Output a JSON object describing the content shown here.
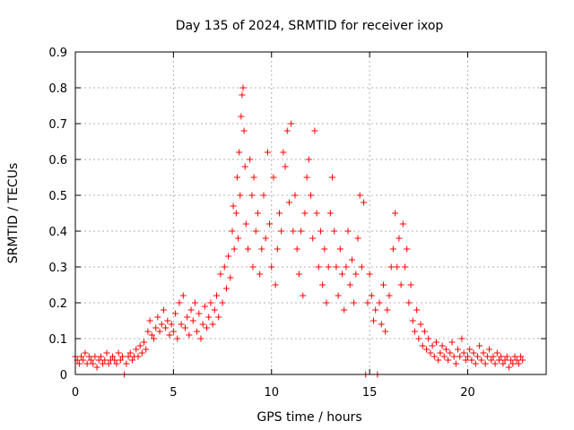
{
  "chart_data": {
    "type": "scatter",
    "title": "Day 135 of 2024, SRMTID for receiver ixop",
    "xlabel": "GPS time / hours",
    "ylabel": "SRMTID / TECUs",
    "xlim": [
      0,
      24
    ],
    "ylim": [
      0,
      0.9
    ],
    "grid": true,
    "marker": "+",
    "x_ticks": [
      {
        "value": 0,
        "label": "0"
      },
      {
        "value": 5,
        "label": "5"
      },
      {
        "value": 10,
        "label": "10"
      },
      {
        "value": 15,
        "label": "15"
      },
      {
        "value": 20,
        "label": "20"
      }
    ],
    "y_ticks": [
      {
        "value": 0,
        "label": "0"
      },
      {
        "value": 0.1,
        "label": "0.1"
      },
      {
        "value": 0.2,
        "label": "0.2"
      },
      {
        "value": 0.3,
        "label": "0.3"
      },
      {
        "value": 0.4,
        "label": "0.4"
      },
      {
        "value": 0.5,
        "label": "0.5"
      },
      {
        "value": 0.6,
        "label": "0.6"
      },
      {
        "value": 0.7,
        "label": "0.7"
      },
      {
        "value": 0.8,
        "label": "0.8"
      },
      {
        "value": 0.9,
        "label": "0.9"
      }
    ],
    "series": [
      {
        "name": "SRMTID",
        "color": "#ff0000",
        "points": [
          [
            0.0,
            0.05
          ],
          [
            0.1,
            0.04
          ],
          [
            0.2,
            0.03
          ],
          [
            0.3,
            0.05
          ],
          [
            0.4,
            0.04
          ],
          [
            0.5,
            0.06
          ],
          [
            0.6,
            0.03
          ],
          [
            0.7,
            0.05
          ],
          [
            0.8,
            0.04
          ],
          [
            0.9,
            0.03
          ],
          [
            1.0,
            0.05
          ],
          [
            1.1,
            0.02
          ],
          [
            1.2,
            0.04
          ],
          [
            1.3,
            0.05
          ],
          [
            1.4,
            0.03
          ],
          [
            1.5,
            0.04
          ],
          [
            1.6,
            0.06
          ],
          [
            1.7,
            0.03
          ],
          [
            1.8,
            0.04
          ],
          [
            1.9,
            0.05
          ],
          [
            2.0,
            0.04
          ],
          [
            2.1,
            0.03
          ],
          [
            2.2,
            0.06
          ],
          [
            2.3,
            0.04
          ],
          [
            2.4,
            0.05
          ],
          [
            2.5,
            0.0
          ],
          [
            2.6,
            0.03
          ],
          [
            2.7,
            0.05
          ],
          [
            2.8,
            0.06
          ],
          [
            2.9,
            0.04
          ],
          [
            3.0,
            0.05
          ],
          [
            3.1,
            0.07
          ],
          [
            3.2,
            0.05
          ],
          [
            3.3,
            0.08
          ],
          [
            3.4,
            0.06
          ],
          [
            3.5,
            0.09
          ],
          [
            3.6,
            0.07
          ],
          [
            3.7,
            0.12
          ],
          [
            3.8,
            0.15
          ],
          [
            3.9,
            0.11
          ],
          [
            4.0,
            0.1
          ],
          [
            4.1,
            0.13
          ],
          [
            4.2,
            0.16
          ],
          [
            4.3,
            0.12
          ],
          [
            4.4,
            0.14
          ],
          [
            4.5,
            0.18
          ],
          [
            4.6,
            0.13
          ],
          [
            4.7,
            0.15
          ],
          [
            4.8,
            0.11
          ],
          [
            4.9,
            0.14
          ],
          [
            5.0,
            0.12
          ],
          [
            5.1,
            0.17
          ],
          [
            5.2,
            0.1
          ],
          [
            5.3,
            0.2
          ],
          [
            5.4,
            0.14
          ],
          [
            5.5,
            0.22
          ],
          [
            5.6,
            0.13
          ],
          [
            5.7,
            0.16
          ],
          [
            5.8,
            0.11
          ],
          [
            5.9,
            0.18
          ],
          [
            6.0,
            0.15
          ],
          [
            6.1,
            0.2
          ],
          [
            6.2,
            0.12
          ],
          [
            6.3,
            0.17
          ],
          [
            6.4,
            0.1
          ],
          [
            6.5,
            0.14
          ],
          [
            6.6,
            0.19
          ],
          [
            6.7,
            0.13
          ],
          [
            6.8,
            0.16
          ],
          [
            6.9,
            0.2
          ],
          [
            7.0,
            0.14
          ],
          [
            7.1,
            0.18
          ],
          [
            7.2,
            0.22
          ],
          [
            7.3,
            0.16
          ],
          [
            7.4,
            0.28
          ],
          [
            7.5,
            0.2
          ],
          [
            7.6,
            0.3
          ],
          [
            7.7,
            0.24
          ],
          [
            7.8,
            0.33
          ],
          [
            7.9,
            0.27
          ],
          [
            8.0,
            0.4
          ],
          [
            8.05,
            0.47
          ],
          [
            8.1,
            0.35
          ],
          [
            8.2,
            0.45
          ],
          [
            8.25,
            0.55
          ],
          [
            8.3,
            0.38
          ],
          [
            8.35,
            0.62
          ],
          [
            8.4,
            0.5
          ],
          [
            8.45,
            0.72
          ],
          [
            8.5,
            0.78
          ],
          [
            8.55,
            0.8
          ],
          [
            8.6,
            0.68
          ],
          [
            8.65,
            0.58
          ],
          [
            8.7,
            0.42
          ],
          [
            8.8,
            0.35
          ],
          [
            8.9,
            0.6
          ],
          [
            9.0,
            0.5
          ],
          [
            9.05,
            0.3
          ],
          [
            9.1,
            0.55
          ],
          [
            9.2,
            0.4
          ],
          [
            9.3,
            0.45
          ],
          [
            9.4,
            0.28
          ],
          [
            9.5,
            0.35
          ],
          [
            9.6,
            0.5
          ],
          [
            9.7,
            0.38
          ],
          [
            9.8,
            0.62
          ],
          [
            9.9,
            0.42
          ],
          [
            10.0,
            0.3
          ],
          [
            10.1,
            0.55
          ],
          [
            10.2,
            0.25
          ],
          [
            10.3,
            0.35
          ],
          [
            10.4,
            0.45
          ],
          [
            10.5,
            0.4
          ],
          [
            10.6,
            0.62
          ],
          [
            10.7,
            0.58
          ],
          [
            10.8,
            0.68
          ],
          [
            10.9,
            0.48
          ],
          [
            11.0,
            0.7
          ],
          [
            11.1,
            0.4
          ],
          [
            11.2,
            0.5
          ],
          [
            11.3,
            0.35
          ],
          [
            11.4,
            0.28
          ],
          [
            11.5,
            0.4
          ],
          [
            11.6,
            0.22
          ],
          [
            11.7,
            0.45
          ],
          [
            11.8,
            0.55
          ],
          [
            11.9,
            0.6
          ],
          [
            12.0,
            0.5
          ],
          [
            12.1,
            0.38
          ],
          [
            12.2,
            0.68
          ],
          [
            12.3,
            0.45
          ],
          [
            12.4,
            0.3
          ],
          [
            12.5,
            0.4
          ],
          [
            12.6,
            0.25
          ],
          [
            12.7,
            0.35
          ],
          [
            12.8,
            0.2
          ],
          [
            12.9,
            0.3
          ],
          [
            13.0,
            0.45
          ],
          [
            13.1,
            0.55
          ],
          [
            13.2,
            0.4
          ],
          [
            13.3,
            0.3
          ],
          [
            13.4,
            0.22
          ],
          [
            13.5,
            0.35
          ],
          [
            13.6,
            0.28
          ],
          [
            13.7,
            0.18
          ],
          [
            13.8,
            0.3
          ],
          [
            13.9,
            0.4
          ],
          [
            14.0,
            0.25
          ],
          [
            14.1,
            0.32
          ],
          [
            14.2,
            0.2
          ],
          [
            14.3,
            0.28
          ],
          [
            14.4,
            0.38
          ],
          [
            14.5,
            0.5
          ],
          [
            14.6,
            0.3
          ],
          [
            14.7,
            0.48
          ],
          [
            14.8,
            0.0
          ],
          [
            14.9,
            0.2
          ],
          [
            15.0,
            0.28
          ],
          [
            15.1,
            0.22
          ],
          [
            15.2,
            0.15
          ],
          [
            15.3,
            0.18
          ],
          [
            15.4,
            0.0
          ],
          [
            15.5,
            0.2
          ],
          [
            15.6,
            0.14
          ],
          [
            15.7,
            0.25
          ],
          [
            15.8,
            0.12
          ],
          [
            15.9,
            0.18
          ],
          [
            16.0,
            0.22
          ],
          [
            16.1,
            0.3
          ],
          [
            16.2,
            0.35
          ],
          [
            16.3,
            0.45
          ],
          [
            16.4,
            0.3
          ],
          [
            16.5,
            0.38
          ],
          [
            16.6,
            0.25
          ],
          [
            16.7,
            0.42
          ],
          [
            16.8,
            0.3
          ],
          [
            16.9,
            0.35
          ],
          [
            17.0,
            0.2
          ],
          [
            17.1,
            0.25
          ],
          [
            17.2,
            0.15
          ],
          [
            17.3,
            0.12
          ],
          [
            17.4,
            0.18
          ],
          [
            17.5,
            0.1
          ],
          [
            17.6,
            0.14
          ],
          [
            17.7,
            0.08
          ],
          [
            17.8,
            0.12
          ],
          [
            17.9,
            0.07
          ],
          [
            18.0,
            0.1
          ],
          [
            18.1,
            0.06
          ],
          [
            18.2,
            0.08
          ],
          [
            18.3,
            0.05
          ],
          [
            18.4,
            0.09
          ],
          [
            18.5,
            0.04
          ],
          [
            18.6,
            0.06
          ],
          [
            18.7,
            0.08
          ],
          [
            18.8,
            0.05
          ],
          [
            18.9,
            0.07
          ],
          [
            19.0,
            0.04
          ],
          [
            19.1,
            0.06
          ],
          [
            19.2,
            0.09
          ],
          [
            19.3,
            0.05
          ],
          [
            19.4,
            0.03
          ],
          [
            19.5,
            0.07
          ],
          [
            19.6,
            0.05
          ],
          [
            19.7,
            0.1
          ],
          [
            19.8,
            0.06
          ],
          [
            19.9,
            0.04
          ],
          [
            20.0,
            0.05
          ],
          [
            20.1,
            0.07
          ],
          [
            20.2,
            0.04
          ],
          [
            20.3,
            0.06
          ],
          [
            20.4,
            0.03
          ],
          [
            20.5,
            0.05
          ],
          [
            20.6,
            0.08
          ],
          [
            20.7,
            0.04
          ],
          [
            20.8,
            0.06
          ],
          [
            20.9,
            0.03
          ],
          [
            21.0,
            0.05
          ],
          [
            21.1,
            0.07
          ],
          [
            21.2,
            0.04
          ],
          [
            21.3,
            0.05
          ],
          [
            21.4,
            0.03
          ],
          [
            21.5,
            0.06
          ],
          [
            21.6,
            0.04
          ],
          [
            21.7,
            0.05
          ],
          [
            21.8,
            0.03
          ],
          [
            21.9,
            0.04
          ],
          [
            22.0,
            0.05
          ],
          [
            22.1,
            0.02
          ],
          [
            22.2,
            0.04
          ],
          [
            22.3,
            0.03
          ],
          [
            22.4,
            0.05
          ],
          [
            22.5,
            0.04
          ],
          [
            22.6,
            0.03
          ],
          [
            22.7,
            0.05
          ],
          [
            22.8,
            0.04
          ]
        ]
      }
    ]
  }
}
